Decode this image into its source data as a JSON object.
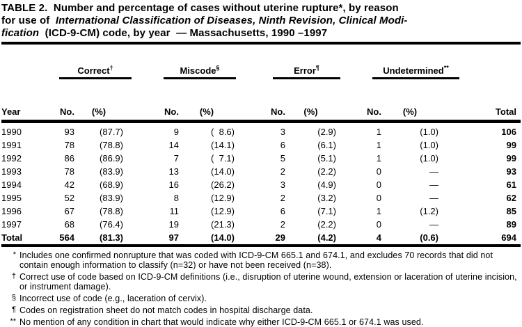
{
  "title": {
    "lines": [
      [
        {
          "t": "TABLE 2.  Number and percentage of cases without uterine rupture*, by reason",
          "i": false
        }
      ],
      [
        {
          "t": "for use of  ",
          "i": false
        },
        {
          "t": "International Classification of Diseases, Ninth Revision, Clinical Modi-",
          "i": true
        }
      ],
      [
        {
          "t": "fication",
          "i": true
        },
        {
          "t": "  (ICD-9-CM) code, by year  — Massachusetts, 1990 –1997",
          "i": false
        }
      ]
    ]
  },
  "table": {
    "groups": [
      {
        "label": "Correct",
        "sup": "†"
      },
      {
        "label": "Miscode",
        "sup": "§"
      },
      {
        "label": "Error",
        "sup": "¶"
      },
      {
        "label": "Undetermined",
        "sup": "**"
      }
    ],
    "headers": {
      "year": "Year",
      "no": "No.",
      "pct": "(%)",
      "total": "Total"
    },
    "rows": [
      {
        "year": "1990",
        "values": [
          "93",
          "(87.7)",
          "9",
          "(  8.6)",
          "3",
          "(2.9)",
          "1",
          "(1.0)"
        ],
        "total": "106"
      },
      {
        "year": "1991",
        "values": [
          "78",
          "(78.8)",
          "14",
          "(14.1)",
          "6",
          "(6.1)",
          "1",
          "(1.0)"
        ],
        "total": "99"
      },
      {
        "year": "1992",
        "values": [
          "86",
          "(86.9)",
          "7",
          "(  7.1)",
          "5",
          "(5.1)",
          "1",
          "(1.0)"
        ],
        "total": "99"
      },
      {
        "year": "1993",
        "values": [
          "78",
          "(83.9)",
          "13",
          "(14.0)",
          "2",
          "(2.2)",
          "0",
          "—"
        ],
        "total": "93"
      },
      {
        "year": "1994",
        "values": [
          "42",
          "(68.9)",
          "16",
          "(26.2)",
          "3",
          "(4.9)",
          "0",
          "—"
        ],
        "total": "61"
      },
      {
        "year": "1995",
        "values": [
          "52",
          "(83.9)",
          "8",
          "(12.9)",
          "2",
          "(3.2)",
          "0",
          "—"
        ],
        "total": "62"
      },
      {
        "year": "1996",
        "values": [
          "67",
          "(78.8)",
          "11",
          "(12.9)",
          "6",
          "(7.1)",
          "1",
          "(1.2)"
        ],
        "total": "85"
      },
      {
        "year": "1997",
        "values": [
          "68",
          "(76.4)",
          "19",
          "(21.3)",
          "2",
          "(2.2)",
          "0",
          "—"
        ],
        "total": "89"
      }
    ],
    "total_row": {
      "year": "Total",
      "values": [
        "564",
        "(81.3)",
        "97",
        "(14.0)",
        "29",
        "(4.2)",
        "4",
        "(0.6)"
      ],
      "total": "694"
    }
  },
  "footnotes": [
    {
      "sym": "*",
      "text": "Includes one confirmed nonrupture that was coded with ICD-9-CM 665.1 and 674.1, and excludes 70 records that did not contain enough information to classify (n=32) or have not been received (n=38)."
    },
    {
      "sym": "†",
      "text": "Correct use of code based on ICD-9-CM definitions (i.e., disruption of uterine wound, extension or laceration of uterine incision, or instrument damage)."
    },
    {
      "sym": "§",
      "text": "Incorrect use of code (e.g., laceration of cervix)."
    },
    {
      "sym": "¶",
      "text": "Codes on registration sheet do not match codes in hospital discharge data."
    },
    {
      "sym": "**",
      "text": "No mention of any condition in chart that would indicate why either ICD-9-CM 665.1 or 674.1 was used."
    }
  ],
  "colors": {
    "text": "#000000",
    "background": "#ffffff",
    "rule": "#000000"
  }
}
